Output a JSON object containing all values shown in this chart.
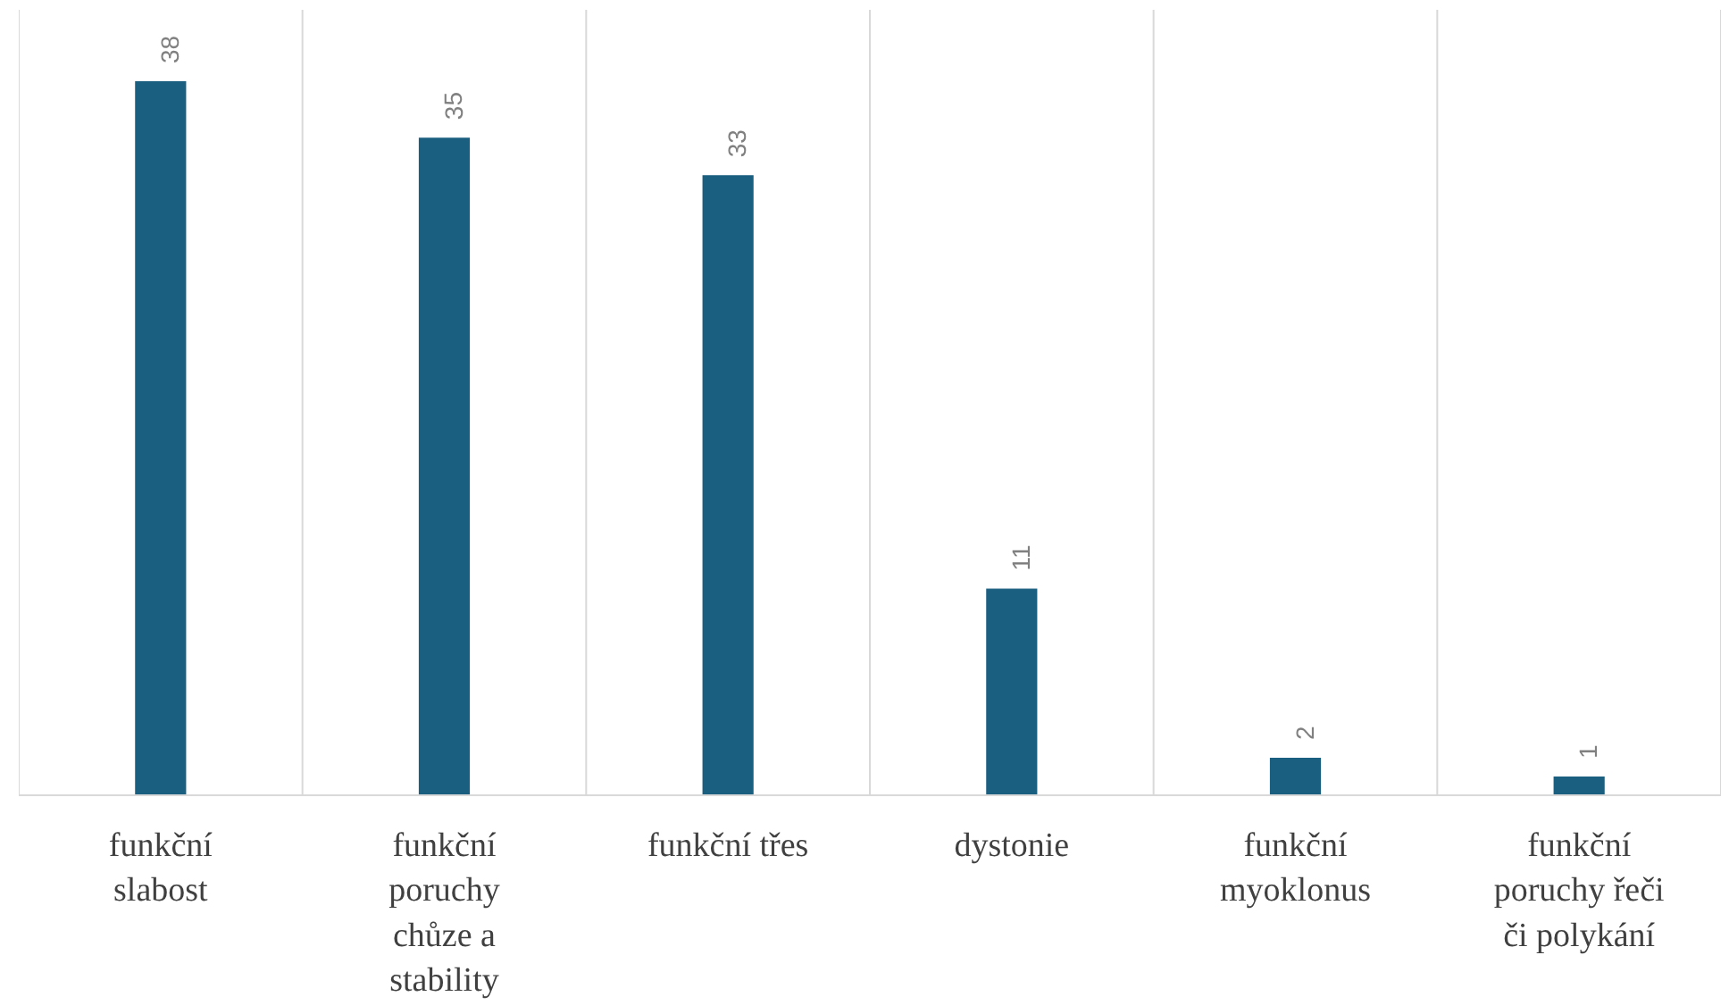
{
  "chart_data": {
    "type": "bar",
    "categories": [
      "funkční slabost",
      "funkční poruchy chůze a stability",
      "funkční třes",
      "dystonie",
      "funkční myoklonus",
      "funkční poruchy řeči či polykání"
    ],
    "values": [
      38,
      35,
      33,
      11,
      2,
      1
    ],
    "color": "#1a5f80",
    "data_labels": true,
    "grid": "x"
  }
}
